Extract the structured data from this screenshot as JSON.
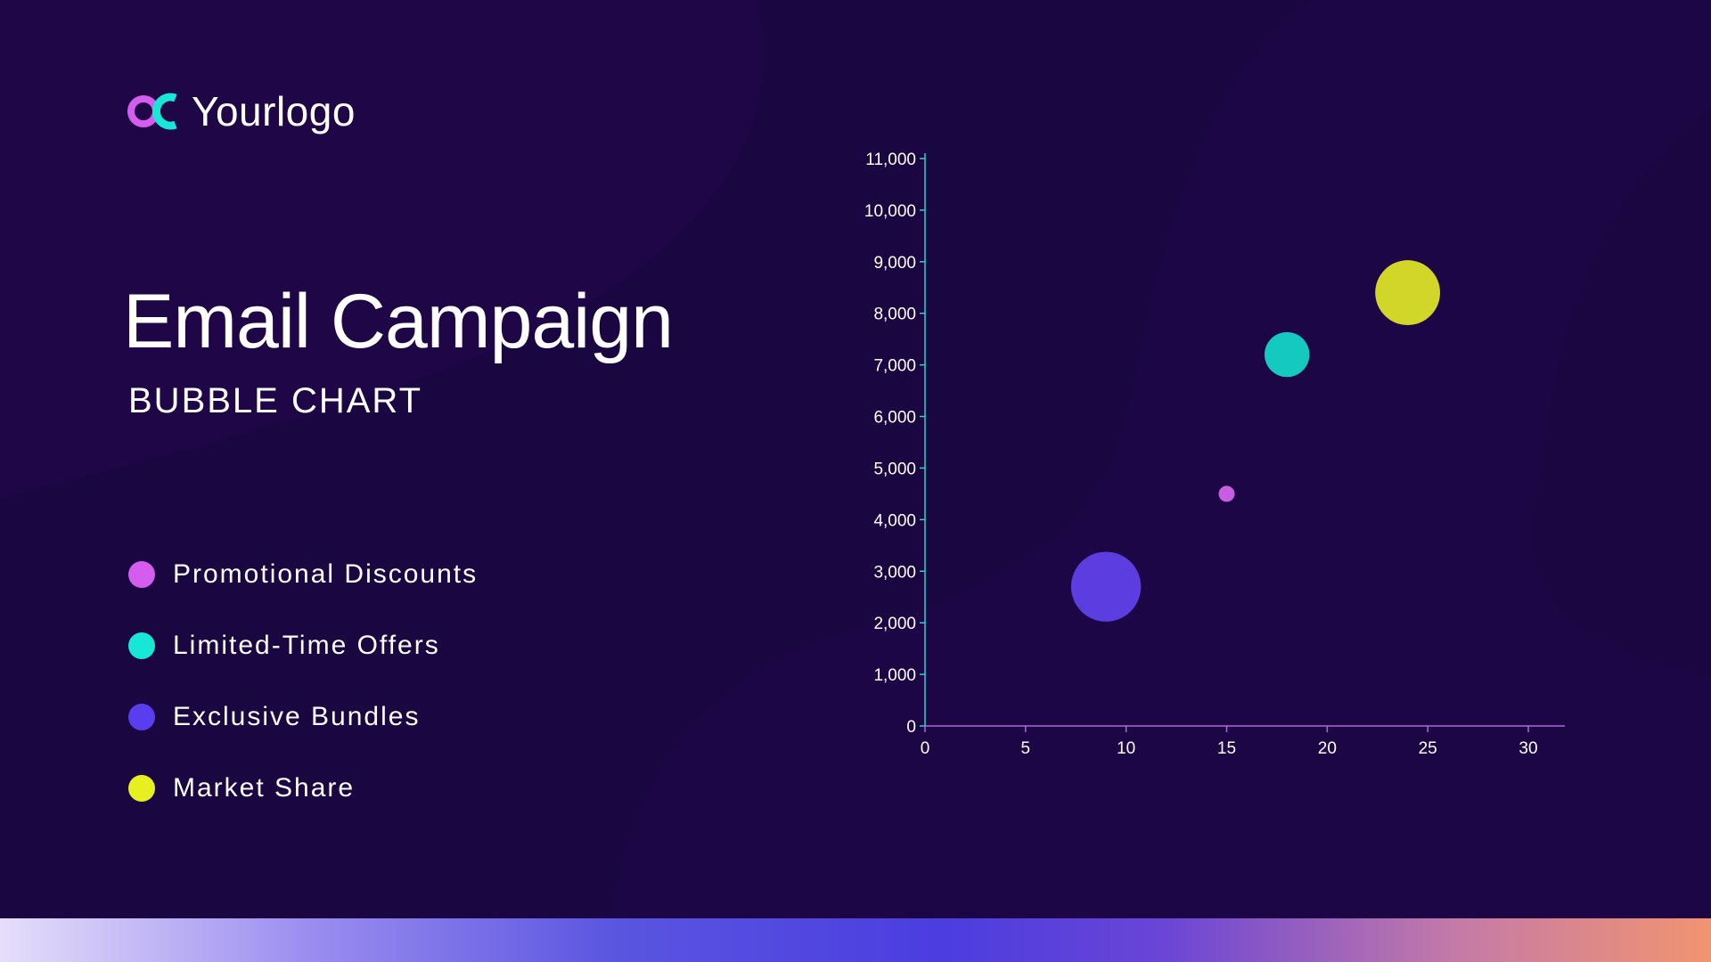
{
  "logo": {
    "text": "Yourlogo",
    "mark_colors": {
      "ring": "#d45df0",
      "arc": "#18e6d6"
    }
  },
  "title": "Email Campaign",
  "subtitle": "BUBBLE CHART",
  "legend": [
    {
      "label": "Promotional Discounts",
      "color": "#d45df0"
    },
    {
      "label": "Limited-Time Offers",
      "color": "#18e6d6"
    },
    {
      "label": "Exclusive Bundles",
      "color": "#5b3df0"
    },
    {
      "label": "Market Share",
      "color": "#e6ef1f"
    }
  ],
  "colors": {
    "background": "#1a0640",
    "axis_y": "#2ad6c8",
    "axis_x": "#b066d6"
  },
  "chart_data": {
    "type": "scatter",
    "bubble": true,
    "xlim": [
      0,
      32
    ],
    "ylim": [
      0,
      11000
    ],
    "x_ticks": [
      0,
      5,
      10,
      15,
      20,
      25,
      30
    ],
    "y_ticks": [
      0,
      1000,
      2000,
      3000,
      4000,
      5000,
      6000,
      7000,
      8000,
      9000,
      10000,
      11000
    ],
    "x_tick_labels": [
      "0",
      "5",
      "10",
      "15",
      "20",
      "25",
      "30"
    ],
    "y_tick_labels": [
      "0",
      "1,000",
      "2,000",
      "3,000",
      "4,000",
      "5,000",
      "6,000",
      "7,000",
      "8,000",
      "9,000",
      "10,000",
      "11,000"
    ],
    "grid": false,
    "legend": "left",
    "series": [
      {
        "name": "Promotional Discounts",
        "x": 15,
        "y": 4500,
        "size": 1,
        "color": "#c75ee0"
      },
      {
        "name": "Limited-Time Offers",
        "x": 18,
        "y": 7200,
        "size": 4.5,
        "color": "#14c9c0"
      },
      {
        "name": "Exclusive Bundles",
        "x": 9,
        "y": 2700,
        "size": 7,
        "color": "#5b3de0"
      },
      {
        "name": "Market Share",
        "x": 24,
        "y": 8400,
        "size": 6.5,
        "color": "#d2d629"
      }
    ]
  }
}
